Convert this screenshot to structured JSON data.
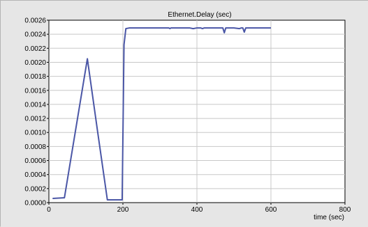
{
  "chart_data": {
    "type": "line",
    "title": "Ethernet.Delay (sec)",
    "xlabel": "time (sec)",
    "ylabel": "",
    "xlim": [
      0,
      800
    ],
    "ylim": [
      0,
      0.0026
    ],
    "x_ticks": [
      "0",
      "200",
      "400",
      "600",
      "800"
    ],
    "y_ticks": [
      "0.0000",
      "0.0002",
      "0.0004",
      "0.0006",
      "0.0008",
      "0.0010",
      "0.0012",
      "0.0014",
      "0.0016",
      "0.0018",
      "0.0020",
      "0.0022",
      "0.0024",
      "0.0026"
    ],
    "grid": true,
    "legend": "none",
    "colors": {
      "line": "#4a56a6",
      "plot_bg": "#ffffff",
      "grid": "#c8c8c8",
      "frame_bg": "#e6e6e6"
    },
    "series": [
      {
        "values": [
          [
            10,
            6e-05
          ],
          [
            42,
            7e-05
          ],
          [
            104,
            0.00205
          ],
          [
            132,
            0.001
          ],
          [
            158,
            4e-05
          ],
          [
            198,
            4e-05
          ],
          [
            203,
            0.00225
          ],
          [
            208,
            0.00248
          ],
          [
            218,
            0.00249
          ],
          [
            300,
            0.00249
          ],
          [
            324,
            0.00249
          ],
          [
            327,
            0.00248
          ],
          [
            330,
            0.00249
          ],
          [
            380,
            0.00249
          ],
          [
            390,
            0.00248
          ],
          [
            400,
            0.00249
          ],
          [
            410,
            0.00249
          ],
          [
            415,
            0.00248
          ],
          [
            420,
            0.00249
          ],
          [
            470,
            0.00249
          ],
          [
            474,
            0.00242
          ],
          [
            478,
            0.00249
          ],
          [
            500,
            0.00249
          ],
          [
            515,
            0.00248
          ],
          [
            520,
            0.00249
          ],
          [
            524,
            0.00249
          ],
          [
            528,
            0.00243
          ],
          [
            532,
            0.00249
          ],
          [
            600,
            0.00249
          ]
        ]
      }
    ]
  }
}
